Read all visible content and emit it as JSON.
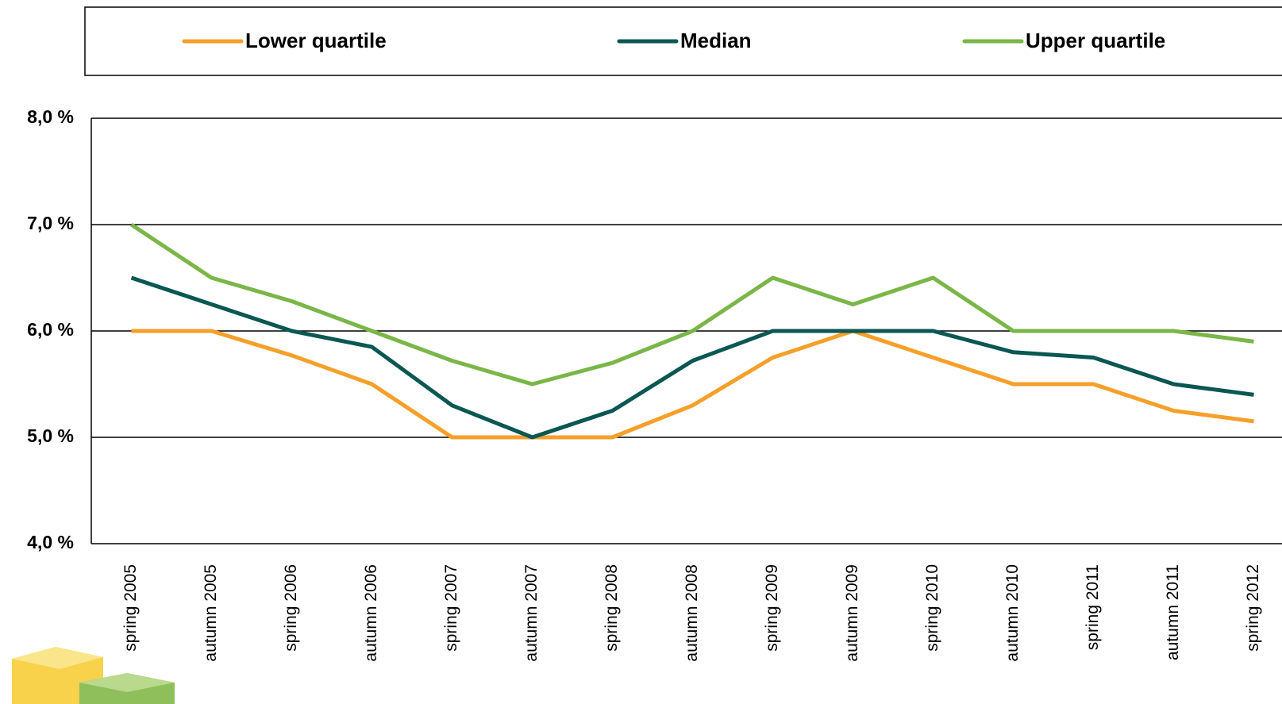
{
  "chart_data": {
    "type": "line",
    "categories": [
      "spring 2005",
      "autumn 2005",
      "spring 2006",
      "autumn 2006",
      "spring 2007",
      "autumn 2007",
      "spring 2008",
      "autumn 2008",
      "spring 2009",
      "autumn 2009",
      "spring 2010",
      "autumn 2010",
      "spring 2011",
      "autumn 2011",
      "spring 2012"
    ],
    "series": [
      {
        "name": "Lower quartile",
        "color": "#f5a02a",
        "values": [
          6.0,
          6.0,
          5.77,
          5.5,
          5.0,
          5.0,
          5.0,
          5.3,
          5.75,
          6.0,
          5.75,
          5.5,
          5.5,
          5.25,
          5.15
        ]
      },
      {
        "name": "Median",
        "color": "#0b5752",
        "values": [
          6.5,
          6.25,
          6.0,
          5.85,
          5.3,
          5.0,
          5.25,
          5.72,
          6.0,
          6.0,
          6.0,
          5.8,
          5.75,
          5.5,
          5.4
        ]
      },
      {
        "name": "Upper quartile",
        "color": "#7ab648",
        "values": [
          7.0,
          6.5,
          6.28,
          6.0,
          5.72,
          5.5,
          5.7,
          6.0,
          6.5,
          6.25,
          6.5,
          6.0,
          6.0,
          6.0,
          5.9
        ]
      }
    ],
    "ylim": [
      4,
      8
    ],
    "yticks": [
      {
        "value": 4,
        "label": "4,0 %"
      },
      {
        "value": 5,
        "label": "5,0 %"
      },
      {
        "value": 6,
        "label": "6,0 %"
      },
      {
        "value": 7,
        "label": "7,0 %"
      },
      {
        "value": 8,
        "label": "8,0 %"
      }
    ],
    "grid": true
  }
}
